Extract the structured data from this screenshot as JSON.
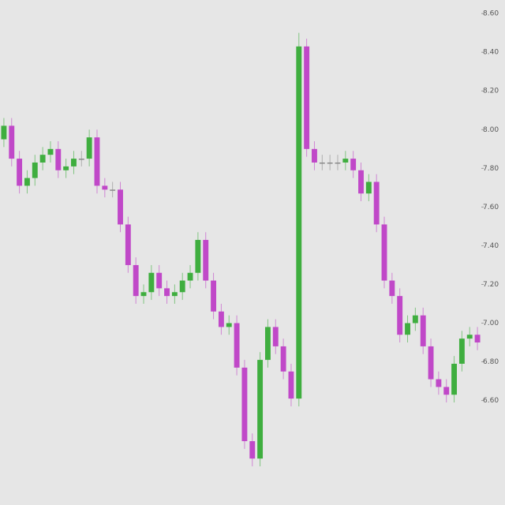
{
  "chart_data": {
    "type": "candlestick",
    "ylim": [
      6.06,
      8.67
    ],
    "yticks": [
      {
        "value": 8.6,
        "label": "8.60"
      },
      {
        "value": 8.4,
        "label": "8.40"
      },
      {
        "value": 8.2,
        "label": "8.20"
      },
      {
        "value": 8.0,
        "label": "8.00"
      },
      {
        "value": 7.8,
        "label": "7.80"
      },
      {
        "value": 7.6,
        "label": "7.60"
      },
      {
        "value": 7.4,
        "label": "7.40"
      },
      {
        "value": 7.2,
        "label": "7.20"
      },
      {
        "value": 7.0,
        "label": "7.00"
      },
      {
        "value": 6.8,
        "label": "6.80"
      },
      {
        "value": 6.6,
        "label": "6.60"
      }
    ],
    "up_color": "#3fae3f",
    "down_color": "#c048c8",
    "flat_color": "#8a8a8a",
    "open": [
      7.95,
      8.02,
      7.85,
      7.71,
      7.75,
      7.83,
      7.87,
      7.9,
      7.79,
      7.81,
      7.85,
      7.85,
      7.96,
      7.71,
      7.69,
      7.69,
      7.51,
      7.3,
      7.14,
      7.16,
      7.26,
      7.18,
      7.14,
      7.16,
      7.22,
      7.26,
      7.43,
      7.22,
      7.06,
      6.98,
      7.0,
      6.77,
      6.39,
      6.3,
      6.81,
      6.98,
      6.88,
      6.75,
      6.61,
      8.43,
      7.9,
      7.83,
      7.83,
      7.83,
      7.83,
      7.85,
      7.79,
      7.67,
      7.73,
      7.51,
      7.22,
      7.14,
      6.94,
      7.0,
      7.04,
      6.88,
      6.71,
      6.67,
      6.63,
      6.79,
      6.92,
      6.94
    ],
    "high": [
      8.06,
      8.06,
      7.89,
      7.79,
      7.87,
      7.91,
      7.94,
      7.94,
      7.85,
      7.89,
      7.89,
      8.0,
      8.0,
      7.75,
      7.73,
      7.73,
      7.55,
      7.34,
      7.2,
      7.3,
      7.3,
      7.22,
      7.2,
      7.26,
      7.3,
      7.47,
      7.47,
      7.26,
      7.1,
      7.04,
      7.04,
      6.81,
      6.43,
      6.85,
      7.02,
      7.02,
      6.92,
      6.79,
      8.5,
      8.47,
      7.94,
      7.87,
      7.87,
      7.87,
      7.89,
      7.89,
      7.83,
      7.77,
      7.77,
      7.55,
      7.26,
      7.18,
      7.04,
      7.08,
      7.08,
      6.92,
      6.75,
      6.71,
      6.83,
      6.96,
      6.98,
      6.98
    ],
    "low": [
      7.91,
      7.81,
      7.67,
      7.67,
      7.71,
      7.79,
      7.83,
      7.75,
      7.75,
      7.77,
      7.81,
      7.81,
      7.67,
      7.65,
      7.65,
      7.47,
      7.26,
      7.1,
      7.1,
      7.12,
      7.14,
      7.1,
      7.1,
      7.12,
      7.18,
      7.22,
      7.18,
      7.02,
      6.94,
      6.94,
      6.73,
      6.35,
      6.26,
      6.26,
      6.77,
      6.84,
      6.71,
      6.57,
      6.57,
      7.86,
      7.79,
      7.79,
      7.79,
      7.79,
      7.79,
      7.75,
      7.63,
      7.63,
      7.47,
      7.18,
      7.1,
      6.9,
      6.9,
      6.96,
      6.84,
      6.67,
      6.63,
      6.59,
      6.59,
      6.75,
      6.88,
      6.86
    ],
    "close": [
      8.02,
      7.85,
      7.71,
      7.75,
      7.83,
      7.87,
      7.9,
      7.79,
      7.81,
      7.85,
      7.85,
      7.96,
      7.71,
      7.69,
      7.69,
      7.51,
      7.3,
      7.14,
      7.16,
      7.26,
      7.18,
      7.14,
      7.16,
      7.22,
      7.26,
      7.43,
      7.22,
      7.06,
      6.98,
      7.0,
      6.77,
      6.39,
      6.3,
      6.81,
      6.98,
      6.88,
      6.75,
      6.61,
      8.43,
      7.9,
      7.83,
      7.83,
      7.83,
      7.83,
      7.85,
      7.79,
      7.67,
      7.73,
      7.51,
      7.22,
      7.14,
      6.94,
      7.0,
      7.04,
      6.88,
      6.71,
      6.67,
      6.63,
      6.79,
      6.92,
      6.94,
      6.9
    ]
  }
}
